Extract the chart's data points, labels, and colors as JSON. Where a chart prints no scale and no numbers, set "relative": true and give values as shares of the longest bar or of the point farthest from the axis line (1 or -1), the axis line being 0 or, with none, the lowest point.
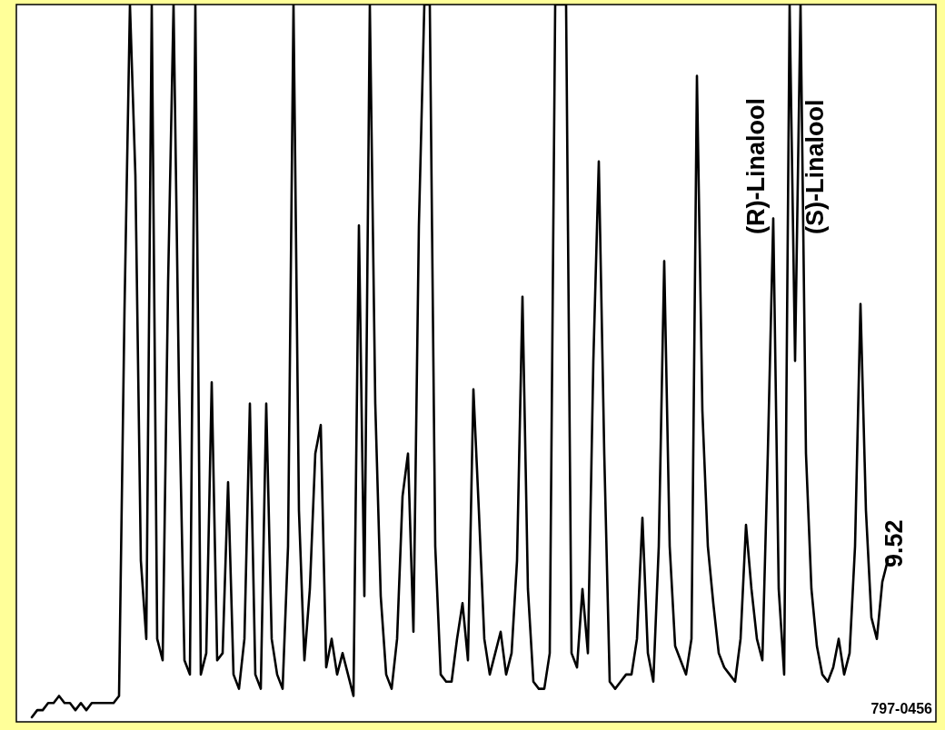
{
  "chart_data": {
    "type": "line",
    "relative": true,
    "categories": [
      null,
      null,
      null,
      null,
      null,
      null,
      null,
      null,
      null,
      null,
      null,
      null,
      null,
      null,
      null,
      null,
      null,
      null,
      null,
      null,
      null,
      null,
      null,
      null,
      null,
      null,
      null,
      null,
      null,
      null,
      null,
      null,
      null,
      null,
      null,
      null,
      null,
      null,
      null,
      null,
      null,
      null,
      null,
      null,
      null,
      null,
      null,
      null,
      null,
      null,
      null,
      null,
      null,
      null,
      null,
      null,
      null,
      null,
      null,
      null,
      null,
      null,
      null,
      null,
      null,
      null,
      null,
      null,
      null,
      null,
      null,
      null,
      null,
      null,
      null,
      null,
      null,
      null,
      null,
      null,
      null,
      null,
      null,
      null,
      null,
      null,
      null,
      null,
      null,
      null,
      null,
      null,
      null,
      null,
      null,
      null,
      null,
      null,
      null,
      null,
      null,
      null,
      null,
      null,
      null,
      null,
      null,
      null,
      null,
      null,
      null,
      null,
      null,
      null,
      null,
      null,
      null,
      null,
      null,
      null,
      null,
      null,
      null,
      null,
      null,
      null,
      null,
      null,
      null,
      null,
      null,
      null,
      null,
      null,
      null,
      null,
      null,
      null,
      null,
      null,
      null,
      null,
      null,
      null,
      null,
      null,
      null,
      null,
      null,
      null,
      null,
      null,
      null,
      null,
      null,
      null,
      null,
      null
    ],
    "series": [
      {
        "color": "#000000",
        "values": [
          0,
          0.01,
          0.01,
          0.02,
          0.02,
          0.03,
          0.02,
          0.02,
          0.01,
          0.02,
          0.01,
          0.02,
          0.02,
          0.02,
          0.02,
          0.02,
          0.03,
          0.57,
          1,
          0.76,
          0.22,
          0.11,
          1,
          0.11,
          0.08,
          0.61,
          1,
          0.46,
          0.08,
          0.06,
          1,
          0.06,
          0.09,
          0.47,
          0.08,
          0.09,
          0.33,
          0.06,
          0.04,
          0.11,
          0.44,
          0.06,
          0.04,
          0.44,
          0.11,
          0.06,
          0.04,
          0.24,
          1,
          0.29,
          0.08,
          0.18,
          0.37,
          0.41,
          0.07,
          0.11,
          0.06,
          0.09,
          0.06,
          0.03,
          0.69,
          0.17,
          1,
          0.44,
          0.17,
          0.06,
          0.04,
          0.11,
          0.31,
          0.37,
          0.12,
          0.69,
          1,
          1,
          0.24,
          0.06,
          0.05,
          0.05,
          0.11,
          0.16,
          0.08,
          0.46,
          0.29,
          0.11,
          0.06,
          0.09,
          0.12,
          0.06,
          0.09,
          0.22,
          0.59,
          0.18,
          0.05,
          0.04,
          0.04,
          0.09,
          1,
          1,
          1,
          0.09,
          0.07,
          0.18,
          0.09,
          0.5,
          0.78,
          0.37,
          0.05,
          0.04,
          0.05,
          0.06,
          0.06,
          0.11,
          0.28,
          0.09,
          0.05,
          0.24,
          0.64,
          0.24,
          0.1,
          0.08,
          0.06,
          0.11,
          0.9,
          0.43,
          0.24,
          0.16,
          0.09,
          0.07,
          0.06,
          0.05,
          0.11,
          0.27,
          0.18,
          0.11,
          0.08,
          0.37,
          0.7,
          0.18,
          0.06,
          1,
          0.5,
          1,
          0.37,
          0.18,
          0.1,
          0.06,
          0.05,
          0.07,
          0.11,
          0.06,
          0.09,
          0.24,
          0.58,
          0.29,
          0.14,
          0.11,
          0.19,
          0.22
        ]
      }
    ],
    "annotations": [
      "(R)-Linalool",
      "(S)-Linalool",
      "9.52",
      "797-0456"
    ]
  }
}
